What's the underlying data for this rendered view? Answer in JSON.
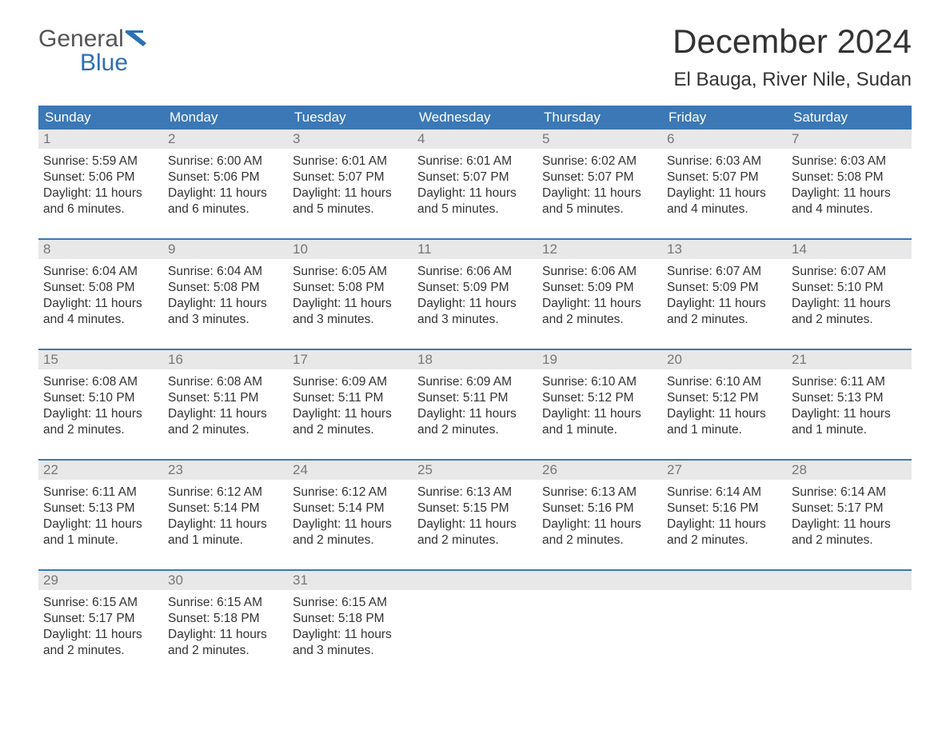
{
  "logo": {
    "word1": "General",
    "word2": "Blue"
  },
  "title": "December 2024",
  "location": "El Bauga, River Nile, Sudan",
  "colors": {
    "header_bg": "#3b78b5",
    "header_text": "#ffffff",
    "daynum_bg": "#e8e8e8",
    "daynum_text": "#777777",
    "week_border": "#3b78b5",
    "body_text": "#333333",
    "logo_blue": "#2d6fb5"
  },
  "day_headers": [
    "Sunday",
    "Monday",
    "Tuesday",
    "Wednesday",
    "Thursday",
    "Friday",
    "Saturday"
  ],
  "weeks": [
    [
      {
        "n": "1",
        "sunrise": "5:59 AM",
        "sunset": "5:06 PM",
        "daylight": "11 hours and 6 minutes."
      },
      {
        "n": "2",
        "sunrise": "6:00 AM",
        "sunset": "5:06 PM",
        "daylight": "11 hours and 6 minutes."
      },
      {
        "n": "3",
        "sunrise": "6:01 AM",
        "sunset": "5:07 PM",
        "daylight": "11 hours and 5 minutes."
      },
      {
        "n": "4",
        "sunrise": "6:01 AM",
        "sunset": "5:07 PM",
        "daylight": "11 hours and 5 minutes."
      },
      {
        "n": "5",
        "sunrise": "6:02 AM",
        "sunset": "5:07 PM",
        "daylight": "11 hours and 5 minutes."
      },
      {
        "n": "6",
        "sunrise": "6:03 AM",
        "sunset": "5:07 PM",
        "daylight": "11 hours and 4 minutes."
      },
      {
        "n": "7",
        "sunrise": "6:03 AM",
        "sunset": "5:08 PM",
        "daylight": "11 hours and 4 minutes."
      }
    ],
    [
      {
        "n": "8",
        "sunrise": "6:04 AM",
        "sunset": "5:08 PM",
        "daylight": "11 hours and 4 minutes."
      },
      {
        "n": "9",
        "sunrise": "6:04 AM",
        "sunset": "5:08 PM",
        "daylight": "11 hours and 3 minutes."
      },
      {
        "n": "10",
        "sunrise": "6:05 AM",
        "sunset": "5:08 PM",
        "daylight": "11 hours and 3 minutes."
      },
      {
        "n": "11",
        "sunrise": "6:06 AM",
        "sunset": "5:09 PM",
        "daylight": "11 hours and 3 minutes."
      },
      {
        "n": "12",
        "sunrise": "6:06 AM",
        "sunset": "5:09 PM",
        "daylight": "11 hours and 2 minutes."
      },
      {
        "n": "13",
        "sunrise": "6:07 AM",
        "sunset": "5:09 PM",
        "daylight": "11 hours and 2 minutes."
      },
      {
        "n": "14",
        "sunrise": "6:07 AM",
        "sunset": "5:10 PM",
        "daylight": "11 hours and 2 minutes."
      }
    ],
    [
      {
        "n": "15",
        "sunrise": "6:08 AM",
        "sunset": "5:10 PM",
        "daylight": "11 hours and 2 minutes."
      },
      {
        "n": "16",
        "sunrise": "6:08 AM",
        "sunset": "5:11 PM",
        "daylight": "11 hours and 2 minutes."
      },
      {
        "n": "17",
        "sunrise": "6:09 AM",
        "sunset": "5:11 PM",
        "daylight": "11 hours and 2 minutes."
      },
      {
        "n": "18",
        "sunrise": "6:09 AM",
        "sunset": "5:11 PM",
        "daylight": "11 hours and 2 minutes."
      },
      {
        "n": "19",
        "sunrise": "6:10 AM",
        "sunset": "5:12 PM",
        "daylight": "11 hours and 1 minute."
      },
      {
        "n": "20",
        "sunrise": "6:10 AM",
        "sunset": "5:12 PM",
        "daylight": "11 hours and 1 minute."
      },
      {
        "n": "21",
        "sunrise": "6:11 AM",
        "sunset": "5:13 PM",
        "daylight": "11 hours and 1 minute."
      }
    ],
    [
      {
        "n": "22",
        "sunrise": "6:11 AM",
        "sunset": "5:13 PM",
        "daylight": "11 hours and 1 minute."
      },
      {
        "n": "23",
        "sunrise": "6:12 AM",
        "sunset": "5:14 PM",
        "daylight": "11 hours and 1 minute."
      },
      {
        "n": "24",
        "sunrise": "6:12 AM",
        "sunset": "5:14 PM",
        "daylight": "11 hours and 2 minutes."
      },
      {
        "n": "25",
        "sunrise": "6:13 AM",
        "sunset": "5:15 PM",
        "daylight": "11 hours and 2 minutes."
      },
      {
        "n": "26",
        "sunrise": "6:13 AM",
        "sunset": "5:16 PM",
        "daylight": "11 hours and 2 minutes."
      },
      {
        "n": "27",
        "sunrise": "6:14 AM",
        "sunset": "5:16 PM",
        "daylight": "11 hours and 2 minutes."
      },
      {
        "n": "28",
        "sunrise": "6:14 AM",
        "sunset": "5:17 PM",
        "daylight": "11 hours and 2 minutes."
      }
    ],
    [
      {
        "n": "29",
        "sunrise": "6:15 AM",
        "sunset": "5:17 PM",
        "daylight": "11 hours and 2 minutes."
      },
      {
        "n": "30",
        "sunrise": "6:15 AM",
        "sunset": "5:18 PM",
        "daylight": "11 hours and 2 minutes."
      },
      {
        "n": "31",
        "sunrise": "6:15 AM",
        "sunset": "5:18 PM",
        "daylight": "11 hours and 3 minutes."
      },
      null,
      null,
      null,
      null
    ]
  ],
  "labels": {
    "sunrise": "Sunrise: ",
    "sunset": "Sunset: ",
    "daylight": "Daylight: "
  }
}
